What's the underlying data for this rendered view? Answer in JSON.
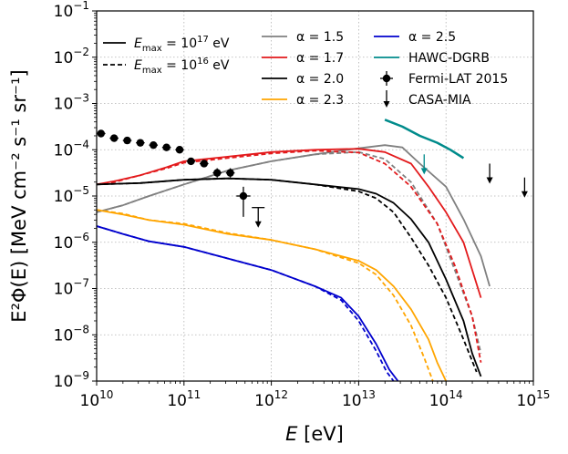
{
  "chart_data": {
    "type": "line",
    "title": "",
    "xlabel": "E [eV]",
    "ylabel": "E²Φ(E) [MeV cm⁻² s⁻¹ sr⁻¹]",
    "xscale": "log",
    "yscale": "log",
    "xlim_log10": [
      10,
      15
    ],
    "ylim_log10": [
      -9,
      -1
    ],
    "x_ticks": [
      {
        "base": "10",
        "exp": "10"
      },
      {
        "base": "10",
        "exp": "11"
      },
      {
        "base": "10",
        "exp": "12"
      },
      {
        "base": "10",
        "exp": "13"
      },
      {
        "base": "10",
        "exp": "14"
      },
      {
        "base": "10",
        "exp": "15"
      }
    ],
    "y_ticks": [
      {
        "base": "10",
        "exp": "−9"
      },
      {
        "base": "10",
        "exp": "−8"
      },
      {
        "base": "10",
        "exp": "−7"
      },
      {
        "base": "10",
        "exp": "−6"
      },
      {
        "base": "10",
        "exp": "−5"
      },
      {
        "base": "10",
        "exp": "−4"
      },
      {
        "base": "10",
        "exp": "−3"
      },
      {
        "base": "10",
        "exp": "−2"
      },
      {
        "base": "10",
        "exp": "−1"
      }
    ],
    "grid": true,
    "legend": {
      "style_entries": [
        {
          "prefix": "E",
          "sub": "max",
          "mid": " = 10",
          "sup": "17",
          "suffix": " eV",
          "dash": "solid"
        },
        {
          "prefix": "E",
          "sub": "max",
          "mid": " = 10",
          "sup": "16",
          "suffix": " eV",
          "dash": "dashed"
        }
      ],
      "alpha_entries": [
        {
          "label": "α = 1.5",
          "color": "#808080"
        },
        {
          "label": "α = 1.7",
          "color": "#e31a1c"
        },
        {
          "label": "α = 2.0",
          "color": "#000000"
        },
        {
          "label": "α = 2.3",
          "color": "#ffa500"
        },
        {
          "label": "α = 2.5",
          "color": "#0000cd"
        }
      ],
      "data_entries": [
        {
          "label": "HAWC-DGRB",
          "color": "#008b8b",
          "marker": "line"
        },
        {
          "label": "Fermi-LAT 2015",
          "color": "#000000",
          "marker": "errorbar"
        },
        {
          "label": "CASA-MIA",
          "color": "#000000",
          "marker": "arrow"
        }
      ]
    },
    "series": [
      {
        "name": "α = 1.5, Emax=1e17",
        "color": "#808080",
        "dash": "solid",
        "points": [
          [
            10.0,
            -5.35
          ],
          [
            10.3,
            -5.2
          ],
          [
            10.6,
            -5.0
          ],
          [
            11.0,
            -4.75
          ],
          [
            11.5,
            -4.45
          ],
          [
            12.0,
            -4.25
          ],
          [
            12.5,
            -4.1
          ],
          [
            13.0,
            -3.97
          ],
          [
            13.3,
            -3.9
          ],
          [
            13.5,
            -3.95
          ],
          [
            13.7,
            -4.3
          ],
          [
            14.0,
            -4.8
          ],
          [
            14.2,
            -5.5
          ],
          [
            14.4,
            -6.3
          ],
          [
            14.5,
            -6.95
          ]
        ]
      },
      {
        "name": "α = 1.5, Emax=1e16",
        "color": "#808080",
        "dash": "dashed",
        "points": [
          [
            10.0,
            -5.35
          ],
          [
            10.3,
            -5.2
          ],
          [
            10.6,
            -5.0
          ],
          [
            11.0,
            -4.75
          ],
          [
            11.5,
            -4.45
          ],
          [
            12.0,
            -4.25
          ],
          [
            12.5,
            -4.1
          ],
          [
            13.0,
            -4.05
          ],
          [
            13.3,
            -4.2
          ],
          [
            13.6,
            -4.7
          ],
          [
            13.9,
            -5.6
          ],
          [
            14.1,
            -6.6
          ],
          [
            14.3,
            -7.6
          ],
          [
            14.4,
            -8.4
          ]
        ]
      },
      {
        "name": "α = 1.7, Emax=1e17",
        "color": "#e31a1c",
        "dash": "solid",
        "points": [
          [
            10.0,
            -4.75
          ],
          [
            10.2,
            -4.68
          ],
          [
            10.5,
            -4.55
          ],
          [
            10.8,
            -4.38
          ],
          [
            11.0,
            -4.25
          ],
          [
            11.5,
            -4.15
          ],
          [
            12.0,
            -4.05
          ],
          [
            12.5,
            -4.0
          ],
          [
            13.0,
            -3.98
          ],
          [
            13.3,
            -4.05
          ],
          [
            13.6,
            -4.3
          ],
          [
            13.8,
            -4.8
          ],
          [
            14.0,
            -5.35
          ],
          [
            14.2,
            -6.0
          ],
          [
            14.4,
            -7.2
          ]
        ]
      },
      {
        "name": "α = 1.7, Emax=1e16",
        "color": "#e31a1c",
        "dash": "dashed",
        "points": [
          [
            10.0,
            -4.75
          ],
          [
            10.2,
            -4.7
          ],
          [
            10.5,
            -4.55
          ],
          [
            10.8,
            -4.4
          ],
          [
            11.0,
            -4.28
          ],
          [
            11.5,
            -4.18
          ],
          [
            12.0,
            -4.08
          ],
          [
            12.5,
            -4.02
          ],
          [
            13.0,
            -4.06
          ],
          [
            13.3,
            -4.3
          ],
          [
            13.6,
            -4.8
          ],
          [
            13.9,
            -5.6
          ],
          [
            14.1,
            -6.5
          ],
          [
            14.3,
            -7.6
          ],
          [
            14.4,
            -8.6
          ]
        ]
      },
      {
        "name": "α = 2.0, Emax=1e17",
        "color": "#000000",
        "dash": "solid",
        "points": [
          [
            10.0,
            -4.75
          ],
          [
            10.5,
            -4.72
          ],
          [
            11.0,
            -4.65
          ],
          [
            11.5,
            -4.62
          ],
          [
            12.0,
            -4.65
          ],
          [
            12.5,
            -4.75
          ],
          [
            13.0,
            -4.85
          ],
          [
            13.2,
            -4.95
          ],
          [
            13.4,
            -5.15
          ],
          [
            13.6,
            -5.5
          ],
          [
            13.8,
            -6.0
          ],
          [
            14.0,
            -6.8
          ],
          [
            14.2,
            -7.7
          ],
          [
            14.3,
            -8.4
          ],
          [
            14.4,
            -8.9
          ]
        ]
      },
      {
        "name": "α = 2.0, Emax=1e16",
        "color": "#000000",
        "dash": "dashed",
        "points": [
          [
            10.0,
            -4.75
          ],
          [
            10.5,
            -4.72
          ],
          [
            11.0,
            -4.65
          ],
          [
            11.5,
            -4.62
          ],
          [
            12.0,
            -4.65
          ],
          [
            12.5,
            -4.75
          ],
          [
            13.0,
            -4.9
          ],
          [
            13.2,
            -5.05
          ],
          [
            13.4,
            -5.35
          ],
          [
            13.6,
            -5.9
          ],
          [
            13.8,
            -6.5
          ],
          [
            14.0,
            -7.2
          ],
          [
            14.2,
            -8.1
          ],
          [
            14.35,
            -8.8
          ]
        ]
      },
      {
        "name": "α = 2.3, Emax=1e17",
        "color": "#ffa500",
        "dash": "solid",
        "points": [
          [
            10.0,
            -5.3
          ],
          [
            10.3,
            -5.4
          ],
          [
            10.6,
            -5.52
          ],
          [
            11.0,
            -5.62
          ],
          [
            11.5,
            -5.82
          ],
          [
            12.0,
            -5.95
          ],
          [
            12.5,
            -6.15
          ],
          [
            13.0,
            -6.4
          ],
          [
            13.2,
            -6.6
          ],
          [
            13.4,
            -6.95
          ],
          [
            13.6,
            -7.45
          ],
          [
            13.8,
            -8.1
          ],
          [
            13.9,
            -8.6
          ],
          [
            14.0,
            -9.0
          ]
        ]
      },
      {
        "name": "α = 2.3, Emax=1e16",
        "color": "#ffa500",
        "dash": "dashed",
        "points": [
          [
            10.0,
            -5.3
          ],
          [
            10.3,
            -5.38
          ],
          [
            10.6,
            -5.52
          ],
          [
            11.0,
            -5.6
          ],
          [
            11.5,
            -5.8
          ],
          [
            12.0,
            -5.95
          ],
          [
            12.5,
            -6.15
          ],
          [
            13.0,
            -6.45
          ],
          [
            13.2,
            -6.7
          ],
          [
            13.4,
            -7.15
          ],
          [
            13.6,
            -7.8
          ],
          [
            13.75,
            -8.5
          ],
          [
            13.85,
            -9.0
          ]
        ]
      },
      {
        "name": "α = 2.5, Emax=1e17",
        "color": "#0000cd",
        "dash": "solid",
        "points": [
          [
            10.0,
            -5.65
          ],
          [
            10.3,
            -5.82
          ],
          [
            10.6,
            -5.98
          ],
          [
            11.0,
            -6.1
          ],
          [
            11.5,
            -6.35
          ],
          [
            12.0,
            -6.6
          ],
          [
            12.5,
            -6.95
          ],
          [
            12.8,
            -7.2
          ],
          [
            13.0,
            -7.6
          ],
          [
            13.2,
            -8.2
          ],
          [
            13.35,
            -8.75
          ],
          [
            13.45,
            -9.0
          ]
        ]
      },
      {
        "name": "α = 2.5, Emax=1e16",
        "color": "#0000cd",
        "dash": "dashed",
        "points": [
          [
            10.0,
            -5.65
          ],
          [
            10.3,
            -5.82
          ],
          [
            10.6,
            -5.98
          ],
          [
            11.0,
            -6.1
          ],
          [
            11.5,
            -6.35
          ],
          [
            12.0,
            -6.6
          ],
          [
            12.5,
            -6.95
          ],
          [
            12.8,
            -7.25
          ],
          [
            13.0,
            -7.7
          ],
          [
            13.2,
            -8.35
          ],
          [
            13.32,
            -8.8
          ],
          [
            13.4,
            -9.0
          ]
        ]
      },
      {
        "name": "HAWC-DGRB",
        "color": "#008b8b",
        "dash": "solid",
        "width": 2.5,
        "points": [
          [
            13.3,
            -3.35
          ],
          [
            13.5,
            -3.5
          ],
          [
            13.7,
            -3.7
          ],
          [
            13.9,
            -3.85
          ],
          [
            14.05,
            -4.0
          ],
          [
            14.2,
            -4.18
          ]
        ]
      }
    ],
    "fermi_points": [
      {
        "x": 10.05,
        "y": -3.65,
        "xerr": 0.05,
        "yerr": 0.05
      },
      {
        "x": 10.2,
        "y": -3.75,
        "xerr": 0.05,
        "yerr": 0.05
      },
      {
        "x": 10.35,
        "y": -3.8,
        "xerr": 0.05,
        "yerr": 0.05
      },
      {
        "x": 10.5,
        "y": -3.85,
        "xerr": 0.05,
        "yerr": 0.05
      },
      {
        "x": 10.65,
        "y": -3.9,
        "xerr": 0.05,
        "yerr": 0.05
      },
      {
        "x": 10.8,
        "y": -3.95,
        "xerr": 0.05,
        "yerr": 0.05
      },
      {
        "x": 10.95,
        "y": -4.0,
        "xerr": 0.05,
        "yerr": 0.05
      },
      {
        "x": 11.08,
        "y": -4.25,
        "xerr": 0.05,
        "yerr": 0.07
      },
      {
        "x": 11.23,
        "y": -4.3,
        "xerr": 0.05,
        "yerr": 0.07
      },
      {
        "x": 11.38,
        "y": -4.5,
        "xerr": 0.05,
        "yerr": 0.1
      },
      {
        "x": 11.53,
        "y": -4.5,
        "xerr": 0.05,
        "yerr": 0.1
      },
      {
        "x": 11.68,
        "y": -5.0,
        "xerr": 0.08,
        "yerr": 0.2,
        "yerr_lo": 0.45
      }
    ],
    "upper_limits": [
      {
        "x": 11.85,
        "y": -5.25,
        "color": "#000000"
      },
      {
        "x": 13.75,
        "y": -4.1,
        "color": "#008b8b"
      },
      {
        "x": 14.5,
        "y": -4.3,
        "color": "#000000"
      },
      {
        "x": 14.9,
        "y": -4.6,
        "color": "#000000"
      }
    ]
  }
}
